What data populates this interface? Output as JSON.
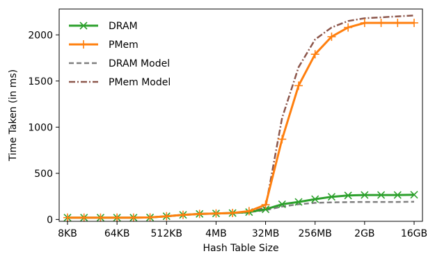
{
  "chart_data": {
    "type": "line",
    "xlabel": "Hash Table Size",
    "ylabel": "Time Taken (in ms)",
    "ylim": [
      -20,
      2280
    ],
    "x_ticks": [
      "8KB",
      "64KB",
      "512KB",
      "4MB",
      "32MB",
      "256MB",
      "2GB",
      "16GB"
    ],
    "y_ticks": [
      0,
      500,
      1000,
      1500,
      2000
    ],
    "x_index_range": [
      0,
      21
    ],
    "legend_position": "top-left",
    "grid": false,
    "series": [
      {
        "name": "DRAM",
        "color": "#2ca02c",
        "style": "solid",
        "marker": "x",
        "x": [
          0,
          1,
          2,
          3,
          4,
          5,
          6,
          7,
          8,
          9,
          10,
          11,
          12,
          13,
          14,
          15,
          16,
          17,
          18,
          19,
          20,
          21
        ],
        "values": [
          20,
          20,
          20,
          20,
          20,
          22,
          35,
          50,
          60,
          65,
          70,
          80,
          110,
          165,
          190,
          220,
          245,
          260,
          265,
          265,
          265,
          268
        ]
      },
      {
        "name": "PMem",
        "color": "#ff7f0e",
        "style": "solid",
        "marker": "+",
        "x": [
          0,
          1,
          2,
          3,
          4,
          5,
          6,
          7,
          8,
          9,
          10,
          11,
          12,
          13,
          14,
          15,
          16,
          17,
          18,
          19,
          20,
          21
        ],
        "values": [
          20,
          20,
          20,
          20,
          20,
          22,
          35,
          50,
          60,
          65,
          70,
          90,
          160,
          870,
          1450,
          1790,
          1980,
          2080,
          2130,
          2130,
          2130,
          2130
        ]
      },
      {
        "name": "DRAM Model",
        "color": "#7f7f7f",
        "style": "dashed",
        "marker": "none",
        "x": [
          0,
          1,
          2,
          3,
          4,
          5,
          6,
          7,
          8,
          9,
          10,
          11,
          12,
          13,
          14,
          15,
          16,
          17,
          18,
          19,
          20,
          21
        ],
        "values": [
          20,
          20,
          20,
          20,
          20,
          22,
          35,
          50,
          60,
          65,
          70,
          80,
          100,
          140,
          165,
          180,
          185,
          188,
          190,
          190,
          190,
          192
        ]
      },
      {
        "name": "PMem Model",
        "color": "#8c564b",
        "style": "dashdot",
        "marker": "none",
        "x": [
          0,
          1,
          2,
          3,
          4,
          5,
          6,
          7,
          8,
          9,
          10,
          11,
          12,
          13,
          14,
          15,
          16,
          17,
          18,
          19,
          20,
          21
        ],
        "values": [
          20,
          20,
          20,
          20,
          20,
          22,
          35,
          50,
          60,
          65,
          70,
          75,
          130,
          1100,
          1650,
          1950,
          2080,
          2150,
          2180,
          2190,
          2200,
          2210
        ]
      }
    ]
  }
}
